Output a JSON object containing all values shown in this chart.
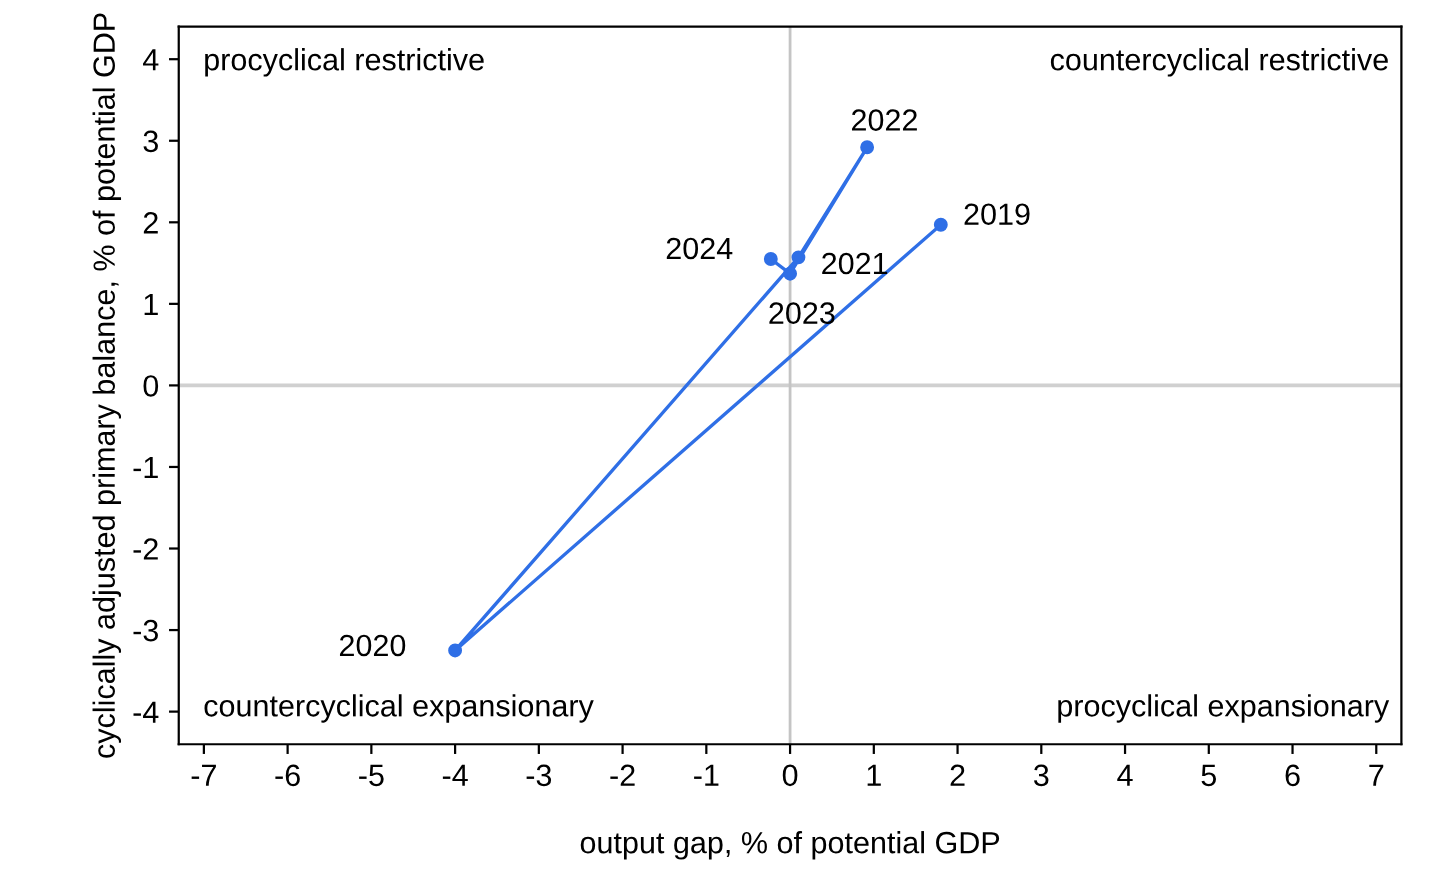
{
  "chart_data": {
    "type": "line",
    "xlabel": "output gap, % of potential GDP",
    "ylabel": "cyclically adjusted primary balance, % of potential GDP",
    "series": [
      {
        "color": "#2f6fe6",
        "x": [
          1.8,
          -4.0,
          0.1,
          0.92,
          0.0,
          -0.23
        ],
        "values": [
          1.97,
          -3.25,
          1.57,
          2.92,
          1.37,
          1.55
        ]
      }
    ],
    "marker": "circle",
    "grid": false,
    "legend": false,
    "xlim": [
      -7.3,
      7.3
    ],
    "xticks": [
      -7,
      -6,
      -5,
      -4,
      -3,
      -2,
      -1,
      0,
      1,
      2,
      3,
      4,
      5,
      6,
      7
    ],
    "ylim": [
      -4.4,
      4.4
    ],
    "yticks": [
      -4,
      -3,
      -2,
      -1,
      0,
      1,
      2,
      3,
      4
    ],
    "ref_lines": [
      {
        "axis": "x",
        "value": 0,
        "color": "#c4c4c4"
      },
      {
        "axis": "y",
        "value": 0,
        "color": "#d0d0d0"
      }
    ],
    "annotations": [
      "procyclical restrictive",
      "countercyclical restrictive",
      "countercyclical expansionary",
      "procyclical expansionary",
      {
        "text": "2019",
        "x": 1.8,
        "y": 1.97
      },
      {
        "text": "2020",
        "x": -4.0,
        "y": -3.25
      },
      {
        "text": "2021",
        "x": 0.1,
        "y": 1.57
      },
      {
        "text": "2022",
        "x": 0.92,
        "y": 2.92
      },
      {
        "text": "2023",
        "x": 0.0,
        "y": 1.37
      },
      {
        "text": "2024",
        "x": -0.23,
        "y": 1.55
      }
    ]
  }
}
